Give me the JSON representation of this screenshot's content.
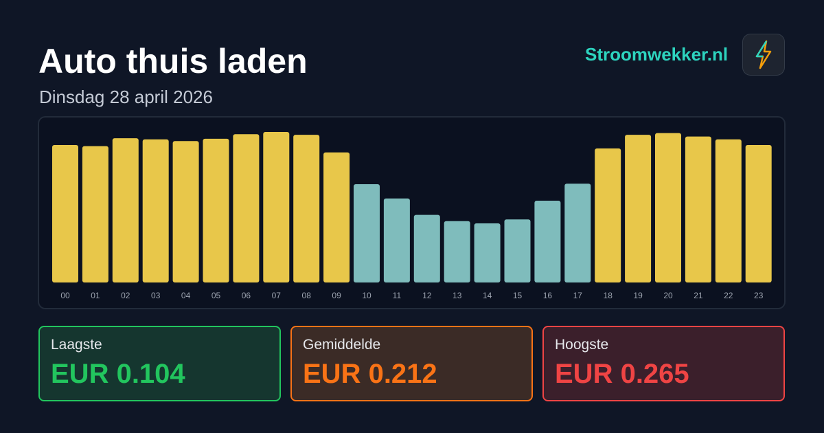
{
  "header": {
    "title": "Auto thuis laden",
    "subtitle": "Dinsdag 28 april 2026",
    "brand": "Stroomwekker.nl"
  },
  "chart_data": {
    "type": "bar",
    "categories": [
      "00",
      "01",
      "02",
      "03",
      "04",
      "05",
      "06",
      "07",
      "08",
      "09",
      "10",
      "11",
      "12",
      "13",
      "14",
      "15",
      "16",
      "17",
      "18",
      "19",
      "20",
      "21",
      "22",
      "23"
    ],
    "values": [
      0.242,
      0.24,
      0.254,
      0.252,
      0.249,
      0.253,
      0.261,
      0.265,
      0.26,
      0.229,
      0.173,
      0.148,
      0.119,
      0.108,
      0.104,
      0.111,
      0.144,
      0.174,
      0.236,
      0.26,
      0.263,
      0.257,
      0.252,
      0.242
    ],
    "colors": [
      "#e8c74a",
      "#e8c74a",
      "#e8c74a",
      "#e8c74a",
      "#e8c74a",
      "#e8c74a",
      "#e8c74a",
      "#e8c74a",
      "#e8c74a",
      "#e8c74a",
      "#7fbcbc",
      "#7fbcbc",
      "#7fbcbc",
      "#7fbcbc",
      "#7fbcbc",
      "#7fbcbc",
      "#7fbcbc",
      "#7fbcbc",
      "#e8c74a",
      "#e8c74a",
      "#e8c74a",
      "#e8c74a",
      "#e8c74a",
      "#e8c74a"
    ]
  },
  "stats": [
    {
      "label": "Laagste",
      "value": "EUR 0.104"
    },
    {
      "label": "Gemiddelde",
      "value": "EUR 0.212"
    },
    {
      "label": "Hoogste",
      "value": "EUR 0.265"
    }
  ]
}
